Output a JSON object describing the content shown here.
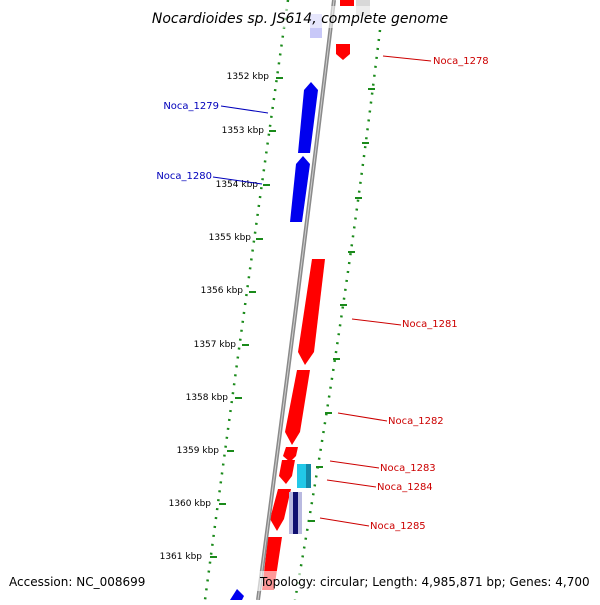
{
  "title": "Nocardioides sp. JS614, complete genome",
  "footer": {
    "accession": "Accession: NC_008699",
    "summary": "Topology: circular; Length: 4,985,871 bp; Genes: 4,700"
  },
  "colors": {
    "backbone": "#8a8a8a",
    "ticks": "#1a8a1a",
    "forward_gene": "#ff0000",
    "reverse_gene": "#0000ee",
    "forward_label": "#cc0000",
    "reverse_label": "#0000bb",
    "feature_cyan": "#22c8e8",
    "feature_navy": "#101070"
  },
  "scale": {
    "unit": "kbp",
    "ticks": [
      "1352 kbp",
      "1353 kbp",
      "1354 kbp",
      "1355 kbp",
      "1356 kbp",
      "1357 kbp",
      "1358 kbp",
      "1359 kbp",
      "1360 kbp",
      "1361 kbp"
    ]
  },
  "genes": [
    {
      "label": "Noca_1278",
      "strand": "forward",
      "start_kbp": 1351.35,
      "end_kbp": 1351.55
    },
    {
      "label": "Noca_1279",
      "strand": "reverse",
      "start_kbp": 1352.05,
      "end_kbp": 1353.35
    },
    {
      "label": "Noca_1280",
      "strand": "reverse",
      "start_kbp": 1353.4,
      "end_kbp": 1354.6
    },
    {
      "label": "Noca_1281",
      "strand": "forward",
      "start_kbp": 1355.4,
      "end_kbp": 1357.45
    },
    {
      "label": "Noca_1282",
      "strand": "forward",
      "start_kbp": 1357.55,
      "end_kbp": 1358.95
    },
    {
      "label": "Noca_1283",
      "strand": "forward",
      "start_kbp": 1359.0,
      "end_kbp": 1359.3
    },
    {
      "label": "Noca_1284",
      "strand": "forward",
      "start_kbp": 1359.35,
      "end_kbp": 1359.75
    },
    {
      "label": "Noca_1285",
      "strand": "forward",
      "start_kbp": 1359.85,
      "end_kbp": 1360.65
    }
  ]
}
